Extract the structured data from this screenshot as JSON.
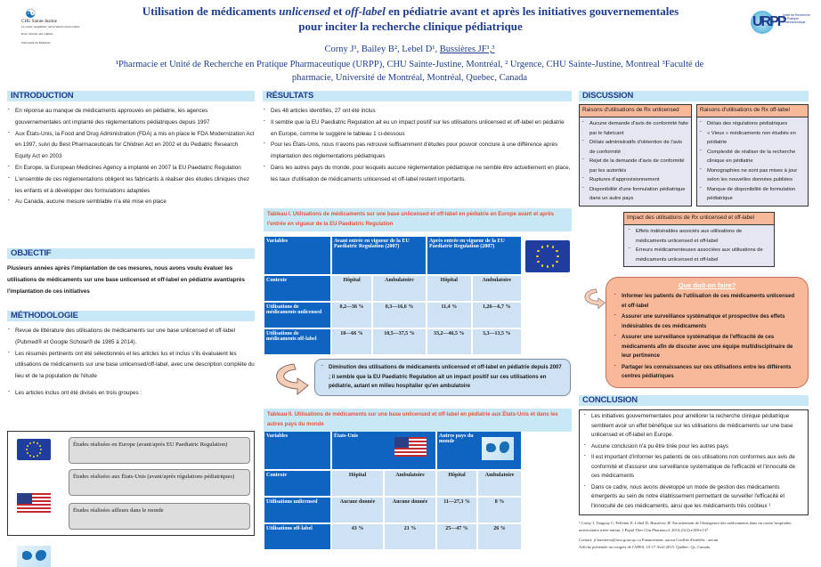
{
  "header": {
    "title_parts": [
      "Utilisation de médicaments ",
      "unlicensed",
      " et ",
      "off-label",
      " en pédiatrie avant et après les initiatives  gouvernementales"
    ],
    "title_line2": "pour inciter la recherche clinique pédiatrique",
    "authors": "Corny J¹, Bailey B², Lebel D¹, ",
    "author_underlined": "Bussières JF¹,³",
    "affiliations": "¹Pharmacie et Unité de Recherche en Pratique Pharmaceutique (URPP), CHU Sainte-Justine, Montréal, ² Urgence, CHU Sainte-Justine, Montreal ³Faculté de pharmacie, Université de Montréal, Montréal, Quebec, Canada",
    "logo_left": {
      "name": "CHU Sainte-Justine",
      "tagline": "Le centre hospitalier universitaire mère-enfant",
      "motto": "Pour l'amour des enfants",
      "univ": "Université de Montréal"
    },
    "logo_right": {
      "text": "URPP",
      "sub": "Unité de Recherche en Pratique Pharmaceutique"
    }
  },
  "introduction": {
    "title": "INTRODUCTION",
    "items": [
      "En réponse au manque de médicaments approuvés en pédiatrie, les agences gouvernementales ont implanté des réglementations pédiatriques depuis 1997",
      "Aux États-Unis, la Food and Drug Administration (FDA) a mis en place le FDA Modernization Act en 1997, suivi du Best Pharmaceuticals for Children Act en 2002 et du Pediatric Research Equity Act en 2003",
      "En Europe, la European Medicines Agency a implanté en 2007 la EU Paediatric Regulation",
      "L'ensemble de ces réglementations obligent les fabricants à réaliser des études cliniques chez les enfants et à développer des formulations adaptées",
      "Au Canada, aucune mesure semblable n'a été mise en place"
    ]
  },
  "objectif": {
    "title": "OBJECTIF",
    "text": "Plusieurs années après l'implantation de ces mesures, nous avons voulu évaluer les utilisations de médicaments sur une base unlicensed et off-label en pédiatrie avant/après l'implantation de ces initiatives"
  },
  "methodologie": {
    "title": "MÉTHODOLOGIE",
    "items": [
      "Revue de littérature des utilisations de médicaments sur une base unlicensed et off-label (Pubmed® et Google Scholar® de 1985 à 2014).",
      "Les résumés pertinents ont été sélectionnés et les articles lus et inclus s'ils évaluaient les utilisations de médicaments sur une base unlicensed/off-label, avec une description complète du lieu et de la population de l'étude",
      "Les articles inclus ont été divisés en trois groupes :"
    ],
    "groups": [
      {
        "icon": "eu-flag",
        "label": "Études réalisées en Europe (avant/après EU Paediatric Regulation)"
      },
      {
        "icon": "us-flag",
        "label": "Études réalisées aux États-Unis (avant/après régulations pédiatriques)"
      },
      {
        "icon": "world-map",
        "label": "Études réalisées ailleurs dans le monde"
      }
    ]
  },
  "resultats": {
    "title": "RÉSULTATS",
    "items": [
      "Des 48 articles identifiés, 27 ont été inclus",
      "Il semble que la EU Paediatric Regulation ait eu un impact positif sur les utilisations unlicensed et off-label en pédiatrie en Europe, comme le suggère le tableau 1 ci-dessous",
      "Pour les États-Unis, nous n'avons pas retrouvé suffisamment d'études pour pouvoir conclure à une différence après implantation des réglementations pédiatriques",
      "Dans les autres pays du monde, pour lesquels aucune réglementation pédiatrique ne semble être actuellement en place, les taux d'utilisation de médicaments unlicensed et off-label restent importants."
    ],
    "table1": {
      "caption": "Tableau I.  Utilisations de médicaments sur une base unlicensed et off-label en pédiatrie en Europe avant et après l'entrée en vigueur de la EU Paediatric Regulation",
      "headers": [
        "Variables",
        "Avant entrée en vigueur de la EU Paediatric Regulation (2007)",
        "Après entrée en vigueur de la EU Paediatric Regulation (2007)"
      ],
      "context": [
        "Contexte",
        "Hôpital",
        "Ambulatoire",
        "Hôpital",
        "Ambulatoire"
      ],
      "rows": [
        [
          "Utilisations de médicaments unlicensed",
          "0,2—36 %",
          "0,3—16,6 %",
          "11,4 %",
          "1,26—6,7 %"
        ],
        [
          "Utilisations de médicaments off-label",
          "18—66 %",
          "10,5—37,5 %",
          "33,2—46,5 %",
          "3,3—13,5 %"
        ]
      ]
    },
    "callout": "Diminution des utilisations de médicaments unlicensed et off-label en pédiatrie depuis 2007 ; il semble que la EU Paediatric Regulation ait un impact positif sur ces utilisations en pédiatrie, autant en milieu hospitalier qu'en ambulatoire",
    "table2": {
      "caption": "Tableau II.  Utilisations de médicaments sur une base unlicensed et off-label en pédiatrie aux États-Unis et dans les autres pays du monde",
      "headers": [
        "Variables",
        "États-Unis",
        "Autres pays du monde"
      ],
      "context": [
        "Contexte",
        "Hôpital",
        "Ambulatoire",
        "Hôpital",
        "Ambulatoire"
      ],
      "rows": [
        [
          "Utilisations unlicensed",
          "Aucune donnée",
          "Aucune donnée",
          "11—27,3 %",
          "8 %"
        ],
        [
          "Utilisations off-label",
          "43 %",
          "21 %",
          "25—47 %",
          "26 %"
        ]
      ]
    }
  },
  "discussion": {
    "title": "DISCUSSION",
    "unlicensed": {
      "title": "Raisons d'utilisations de Rx unlicensed",
      "items": [
        "Aucune demande d'avis de conformité faite par le fabricant",
        "Délais administratifs d'obtention de l'avis de conformité",
        "Rejet de la demande d'avis de conformité par les autorités",
        "Ruptures d'approvisionnement",
        "Disponibilité d'une formulation pédiatrique dans un autre pays"
      ]
    },
    "offlabel": {
      "title": "Raisons d'utilisations de Rx off-label",
      "items": [
        "Délais des régulations pédiatriques",
        "« Vieux » médicaments non étudiés en pédiatrie",
        "Complexité de réaliser de la recherche clinique en pédiatrie",
        "Monographies ne sont pas mises à jour selon les nouvelles données publiées",
        "Manque de disponibilité de formulation pédiatrique"
      ]
    },
    "impact": {
      "title": "Impact des utilisations de Rx unlicensed et off-label",
      "items": [
        "Effets indésirables associés aux utilisations de médicaments unlicensed et off-label",
        "Erreurs médicamenteuses associées aux utilisations de médicaments unlicensed et off-label"
      ]
    },
    "todo": {
      "title": "Que doit-on faire?",
      "items": [
        "Informer les patients de l'utilisation de ces médicaments unlicensed et off-label",
        "Assurer une surveillance systématique et prospective des effets indésirables de ces médicaments",
        "Assurer une surveillance systématique de l'efficacité de ces médicaments afin de discuter avec une équipe multidisciplinaire de leur pertinence",
        "Partager les connaissances sur ces utilisations entre les différents centres pédiatriques"
      ]
    }
  },
  "conclusion": {
    "title": "CONCLUSION",
    "items": [
      "Les initiatives gouvernementales pour améliorer la recherche clinique pédiatrique semblent avoir un effet bénéfique sur les utilisations de médicaments sur une base unlicensed et off-label en Europe.",
      "Aucune conclusion n'a pu être tirée pour les autres pays",
      "Il est important d'informer les patients de ces utilisations non conformes aux avis de conformité et d'assurer une surveillance systématique de l'efficacité et l'innocuité de ces médicaments",
      "Dans ce cadre, nous avons développé un mode de gestion des médicaments émergents au sein de notre établissement permettant de surveiller l'efficacité et l'innocuité de ces médicaments, ainsi que les médicaments très coûteux ¹"
    ]
  },
  "footer": {
    "reference": "¹ Corny J, Tanguay C, Pelletier E, Lebel D, Bussières JF. Encadrement de l'émergence des médicaments dans un centre hospitalier universitaire mère-enfant. J Popul Ther Clin Pharmacol. 2014;21(2):e108-e137",
    "contact": "Contact: jf.bussieres@ssss.gouv.qc.ca   Financement: aucun   Conflits d'intérêts : aucun",
    "presented": "Affiche présentée au congrès de l'APES, 15-17 Avril 2015, Québec, Qc, Canada."
  },
  "colors": {
    "title": "#1f3d8c",
    "section_header_bg": "#c9e8f5",
    "table_header": "#0f63c1",
    "table_cell": "#cfe2f3",
    "caption": "#e8533a",
    "salmon": "#f8b99a"
  }
}
